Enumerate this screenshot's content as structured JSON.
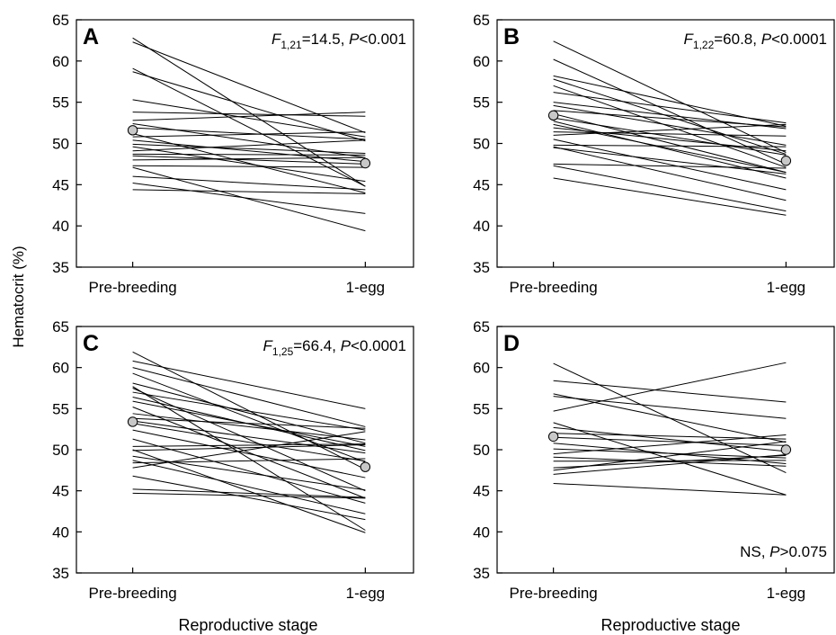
{
  "figure": {
    "ylabel": "Hematocrit (%)",
    "xlabel": "Reproductive stage"
  },
  "chart_data": [
    {
      "type": "line",
      "panel": "A",
      "stat_F": "F",
      "stat_sub": "1,21",
      "stat_mid": "=14.5, ",
      "stat_P": "P",
      "stat_end": "<0.001",
      "categories": [
        "Pre-breeding",
        "1-egg"
      ],
      "ylim": [
        35,
        65
      ],
      "yticks": [
        35,
        40,
        45,
        50,
        55,
        60,
        65
      ],
      "individuals": [
        [
          62.8,
          44.8
        ],
        [
          62.3,
          51.3
        ],
        [
          59.1,
          44.8
        ],
        [
          58.7,
          50.3
        ],
        [
          55.3,
          50.8
        ],
        [
          53.8,
          53.3
        ],
        [
          52.8,
          53.8
        ],
        [
          52.4,
          48.3
        ],
        [
          51.9,
          50.5
        ],
        [
          51.2,
          44.0
        ],
        [
          50.8,
          51.4
        ],
        [
          50.4,
          47.8
        ],
        [
          49.9,
          48.8
        ],
        [
          49.6,
          45.4
        ],
        [
          49.1,
          50.4
        ],
        [
          48.7,
          48.6
        ],
        [
          48.5,
          47.5
        ],
        [
          48.0,
          48.3
        ],
        [
          47.3,
          47.1
        ],
        [
          47.1,
          39.4
        ],
        [
          46.0,
          44.4
        ],
        [
          45.2,
          41.5
        ],
        [
          44.4,
          43.9
        ]
      ],
      "means": [
        51.6,
        47.6
      ]
    },
    {
      "type": "line",
      "panel": "B",
      "stat_F": "F",
      "stat_sub": "1,22",
      "stat_mid": "=60.8, ",
      "stat_P": "P",
      "stat_end": "<0.0001",
      "categories": [
        "Pre-breeding",
        "1-egg"
      ],
      "ylim": [
        35,
        65
      ],
      "yticks": [
        35,
        40,
        45,
        50,
        55,
        60,
        65
      ],
      "individuals": [
        [
          62.4,
          48.9
        ],
        [
          60.2,
          47.5
        ],
        [
          58.2,
          52.1
        ],
        [
          57.8,
          48.7
        ],
        [
          57.0,
          47.1
        ],
        [
          56.2,
          52.5
        ],
        [
          55.0,
          51.8
        ],
        [
          54.6,
          49.8
        ],
        [
          54.0,
          52.0
        ],
        [
          53.6,
          46.5
        ],
        [
          53.1,
          48.6
        ],
        [
          52.7,
          45.8
        ],
        [
          52.3,
          46.5
        ],
        [
          51.9,
          49.1
        ],
        [
          51.4,
          50.9
        ],
        [
          51.0,
          52.3
        ],
        [
          50.5,
          44.4
        ],
        [
          49.8,
          49.6
        ],
        [
          49.6,
          43.1
        ],
        [
          49.5,
          46.3
        ],
        [
          47.5,
          47.0
        ],
        [
          47.3,
          41.8
        ],
        [
          45.8,
          41.3
        ]
      ],
      "means": [
        53.4,
        47.9
      ]
    },
    {
      "type": "line",
      "panel": "C",
      "stat_F": "F",
      "stat_sub": "1,25",
      "stat_mid": "=66.4, ",
      "stat_P": "P",
      "stat_end": "<0.0001",
      "categories": [
        "Pre-breeding",
        "1-egg"
      ],
      "ylim": [
        35,
        65
      ],
      "yticks": [
        35,
        40,
        45,
        50,
        55,
        60,
        65
      ],
      "individuals": [
        [
          61.9,
          47.6
        ],
        [
          60.8,
          55.0
        ],
        [
          60.0,
          52.8
        ],
        [
          59.3,
          48.5
        ],
        [
          58.1,
          50.8
        ],
        [
          57.7,
          40.2
        ],
        [
          57.0,
          52.4
        ],
        [
          56.4,
          49.9
        ],
        [
          55.9,
          50.4
        ],
        [
          55.2,
          44.1
        ],
        [
          54.4,
          51.2
        ],
        [
          53.8,
          52.6
        ],
        [
          53.5,
          49.6
        ],
        [
          53.2,
          48.6
        ],
        [
          52.4,
          46.6
        ],
        [
          51.3,
          43.5
        ],
        [
          50.4,
          50.7
        ],
        [
          50.0,
          39.9
        ],
        [
          49.2,
          45.1
        ],
        [
          48.7,
          42.2
        ],
        [
          48.4,
          48.9
        ],
        [
          47.8,
          52.2
        ],
        [
          46.8,
          41.5
        ],
        [
          45.2,
          44.2
        ],
        [
          44.7,
          44.1
        ],
        [
          49.9,
          50.6
        ],
        [
          57.5,
          45.0
        ]
      ],
      "means": [
        53.4,
        47.9
      ]
    },
    {
      "type": "line",
      "panel": "D",
      "stat_text": "NS, ",
      "stat_P": "P",
      "stat_end": ">0.075",
      "categories": [
        "Pre-breeding",
        "1-egg"
      ],
      "ylim": [
        35,
        65
      ],
      "yticks": [
        35,
        40,
        45,
        50,
        55,
        60,
        65
      ],
      "individuals": [
        [
          60.5,
          47.2
        ],
        [
          58.4,
          55.8
        ],
        [
          56.8,
          50.9
        ],
        [
          56.5,
          53.8
        ],
        [
          54.7,
          60.6
        ],
        [
          53.3,
          44.5
        ],
        [
          52.7,
          49.8
        ],
        [
          52.0,
          51.3
        ],
        [
          51.5,
          50.5
        ],
        [
          50.8,
          48.3
        ],
        [
          50.1,
          49.0
        ],
        [
          49.5,
          51.8
        ],
        [
          49.1,
          48.0
        ],
        [
          48.6,
          48.7
        ],
        [
          47.8,
          49.3
        ],
        [
          47.5,
          51.0
        ],
        [
          47.0,
          49.4
        ],
        [
          45.9,
          44.5
        ]
      ],
      "means": [
        51.6,
        50.0
      ]
    }
  ]
}
